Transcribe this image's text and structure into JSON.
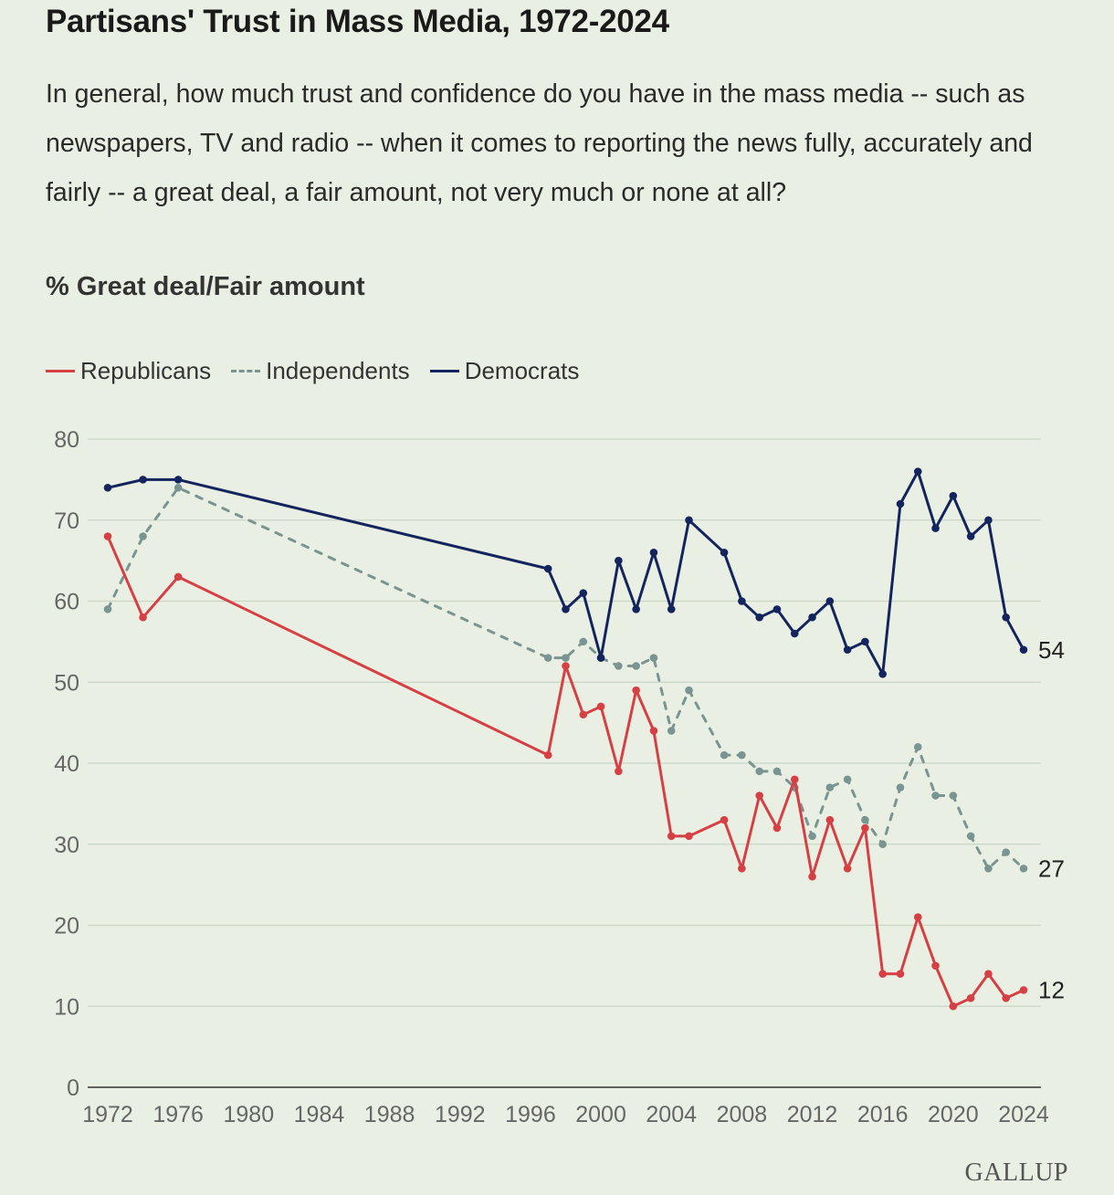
{
  "header": {
    "title": "Partisans' Trust in Mass Media, 1972-2024",
    "subtitle": "In general, how much trust and confidence do you have in the mass media -- such as newspapers, TV and radio -- when it comes to reporting the news fully, accurately and fairly -- a great deal, a fair amount, not very much or none at all?",
    "measure": "% Great deal/Fair amount"
  },
  "brand": "GALLUP",
  "colors": {
    "republicans": "#d64045",
    "independents": "#7a9491",
    "democrats": "#13245e",
    "grid": "#c9d6c4",
    "axis": "#333333",
    "tick_text": "#666666"
  },
  "chart_data": {
    "type": "line",
    "title": "Partisans' Trust in Mass Media, 1972-2024",
    "xlabel": "",
    "ylabel": "% Great deal/Fair amount",
    "xlim": [
      1972,
      2024
    ],
    "ylim": [
      0,
      80
    ],
    "x_ticks": [
      1972,
      1976,
      1980,
      1984,
      1988,
      1992,
      1996,
      2000,
      2004,
      2008,
      2012,
      2016,
      2020,
      2024
    ],
    "y_ticks": [
      0,
      10,
      20,
      30,
      40,
      50,
      60,
      70,
      80
    ],
    "grid": true,
    "legend_position": "top-left",
    "series": [
      {
        "name": "Republicans",
        "color": "#d64045",
        "dashed": false,
        "end_label": "12",
        "points": [
          [
            1972,
            68
          ],
          [
            1974,
            58
          ],
          [
            1976,
            63
          ],
          [
            1997,
            41
          ],
          [
            1998,
            52
          ],
          [
            1999,
            46
          ],
          [
            2000,
            47
          ],
          [
            2001,
            39
          ],
          [
            2002,
            49
          ],
          [
            2003,
            44
          ],
          [
            2004,
            31
          ],
          [
            2005,
            31
          ],
          [
            2007,
            33
          ],
          [
            2008,
            27
          ],
          [
            2009,
            36
          ],
          [
            2010,
            32
          ],
          [
            2011,
            38
          ],
          [
            2012,
            26
          ],
          [
            2013,
            33
          ],
          [
            2014,
            27
          ],
          [
            2015,
            32
          ],
          [
            2016,
            14
          ],
          [
            2017,
            14
          ],
          [
            2018,
            21
          ],
          [
            2019,
            15
          ],
          [
            2020,
            10
          ],
          [
            2021,
            11
          ],
          [
            2022,
            14
          ],
          [
            2023,
            11
          ],
          [
            2024,
            12
          ]
        ]
      },
      {
        "name": "Independents",
        "color": "#7a9491",
        "dashed": true,
        "end_label": "27",
        "points": [
          [
            1972,
            59
          ],
          [
            1974,
            68
          ],
          [
            1976,
            74
          ],
          [
            1997,
            53
          ],
          [
            1998,
            53
          ],
          [
            1999,
            55
          ],
          [
            2000,
            53
          ],
          [
            2001,
            52
          ],
          [
            2002,
            52
          ],
          [
            2003,
            53
          ],
          [
            2004,
            44
          ],
          [
            2005,
            49
          ],
          [
            2007,
            41
          ],
          [
            2008,
            41
          ],
          [
            2009,
            39
          ],
          [
            2010,
            39
          ],
          [
            2011,
            37
          ],
          [
            2012,
            31
          ],
          [
            2013,
            37
          ],
          [
            2014,
            38
          ],
          [
            2015,
            33
          ],
          [
            2016,
            30
          ],
          [
            2017,
            37
          ],
          [
            2018,
            42
          ],
          [
            2019,
            36
          ],
          [
            2020,
            36
          ],
          [
            2021,
            31
          ],
          [
            2022,
            27
          ],
          [
            2023,
            29
          ],
          [
            2024,
            27
          ]
        ]
      },
      {
        "name": "Democrats",
        "color": "#13245e",
        "dashed": false,
        "end_label": "54",
        "points": [
          [
            1972,
            74
          ],
          [
            1974,
            75
          ],
          [
            1976,
            75
          ],
          [
            1997,
            64
          ],
          [
            1998,
            59
          ],
          [
            1999,
            61
          ],
          [
            2000,
            53
          ],
          [
            2001,
            65
          ],
          [
            2002,
            59
          ],
          [
            2003,
            66
          ],
          [
            2004,
            59
          ],
          [
            2005,
            70
          ],
          [
            2007,
            66
          ],
          [
            2008,
            60
          ],
          [
            2009,
            58
          ],
          [
            2010,
            59
          ],
          [
            2011,
            56
          ],
          [
            2012,
            58
          ],
          [
            2013,
            60
          ],
          [
            2014,
            54
          ],
          [
            2015,
            55
          ],
          [
            2016,
            51
          ],
          [
            2017,
            72
          ],
          [
            2018,
            76
          ],
          [
            2019,
            69
          ],
          [
            2020,
            73
          ],
          [
            2021,
            68
          ],
          [
            2022,
            70
          ],
          [
            2023,
            58
          ],
          [
            2024,
            54
          ]
        ]
      }
    ]
  }
}
